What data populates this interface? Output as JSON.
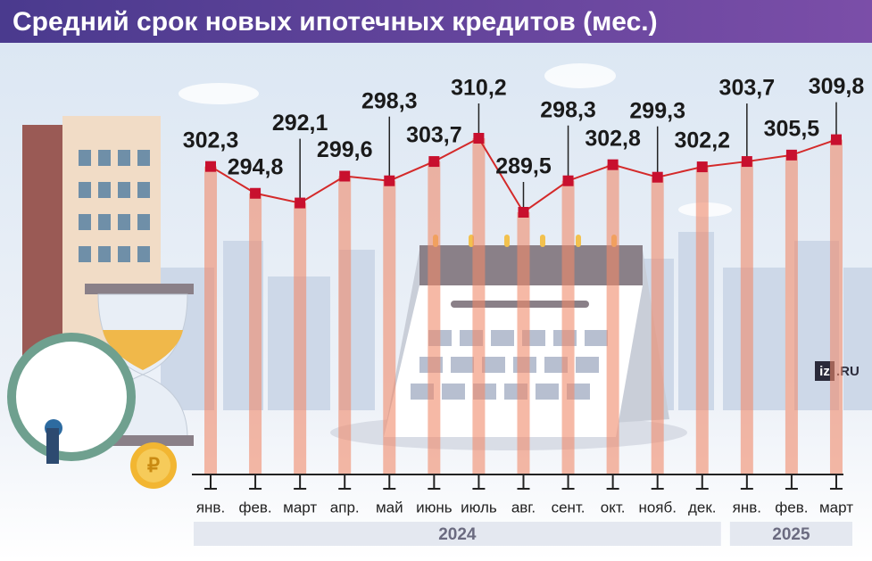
{
  "chart_data": {
    "type": "line",
    "title": "Средний срок новых ипотечных кредитов (мес.)",
    "categories": [
      "янв.",
      "фев.",
      "март",
      "апр.",
      "май",
      "июнь",
      "июль",
      "авг.",
      "сент.",
      "окт.",
      "нояб.",
      "дек.",
      "янв.",
      "фев.",
      "март"
    ],
    "values": [
      302.3,
      294.8,
      292.1,
      299.6,
      298.3,
      303.7,
      310.2,
      289.5,
      298.3,
      302.8,
      299.3,
      302.2,
      303.7,
      305.5,
      309.8
    ],
    "value_labels": [
      "302,3",
      "294,8",
      "292,1",
      "299,6",
      "298,3",
      "303,7",
      "310,2",
      "289,5",
      "298,3",
      "302,8",
      "299,3",
      "302,2",
      "303,7",
      "305,5",
      "309,8"
    ],
    "year_labels": [
      "2024",
      "2025"
    ],
    "color": "#d42a2a",
    "bar_color": "#f08a6a",
    "logo": {
      "mark": "iz",
      "suffix": ".RU"
    }
  }
}
